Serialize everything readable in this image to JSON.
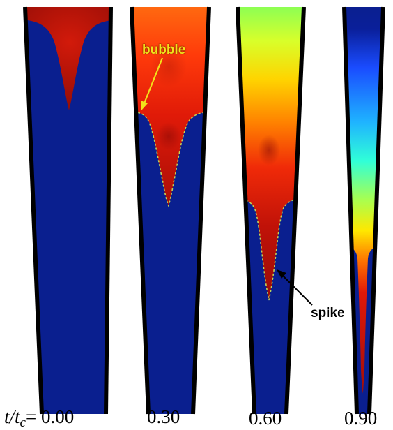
{
  "figure": {
    "time_label_prefix": "t/t",
    "time_label_sub": "c",
    "time_label_eq": "= ",
    "panels": [
      {
        "time": "0.00"
      },
      {
        "time": "0.30"
      },
      {
        "time": "0.60"
      },
      {
        "time": "0.90"
      }
    ],
    "annotations": {
      "bubble": "bubble",
      "spike": "spike"
    }
  },
  "colors": {
    "heavy_fluid": "#0a1f8f",
    "light_fluid_red": "#b01208",
    "wall": "#000000",
    "bubble_label": "#f2e21a",
    "spike_label": "#000000"
  }
}
